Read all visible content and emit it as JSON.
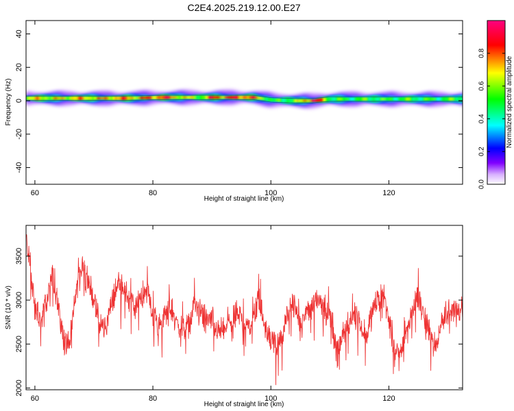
{
  "title": "C2E4.2025.219.12.00.E27",
  "chart_data": [
    {
      "type": "heatmap",
      "xlabel": "Height of straight line (km)",
      "ylabel": "Frequency (Hz)",
      "xlim": [
        58.5,
        132.5
      ],
      "ylim": [
        -50,
        48
      ],
      "xticks": [
        60,
        80,
        100,
        120
      ],
      "yticks": [
        -40,
        -20,
        0,
        20,
        40
      ],
      "colorbar": {
        "label": "Normalized spectral amplitude",
        "range": [
          0,
          1
        ],
        "ticks": [
          "0.0",
          "0.2",
          "0.4",
          "0.6",
          "0.8"
        ],
        "colormap": "rainbow",
        "colors": [
          "#ffffff",
          "#8000ff",
          "#0000ff",
          "#00ffff",
          "#00ff00",
          "#ffff00",
          "#ff0000",
          "#ff0080"
        ]
      },
      "ridge": {
        "x": [
          58.5,
          66,
          75,
          82,
          88,
          90,
          97,
          100,
          104,
          107,
          110,
          120,
          132.5
        ],
        "center_hz": [
          1.5,
          1.5,
          1.5,
          2,
          2,
          2,
          2,
          0.5,
          0,
          0,
          1,
          1,
          1
        ],
        "amplitude": [
          0.65,
          0.7,
          0.75,
          0.82,
          0.55,
          0.85,
          0.8,
          0.45,
          0.55,
          0.95,
          0.5,
          0.5,
          0.5
        ]
      }
    },
    {
      "type": "line",
      "xlabel": "Height of straight line (km)",
      "ylabel": "SNR (10 * v/v)",
      "xlim": [
        58.5,
        132.5
      ],
      "ylim": [
        1980,
        3850
      ],
      "xticks": [
        60,
        80,
        100,
        120
      ],
      "yticks": [
        2000,
        2500,
        3000,
        3500
      ],
      "series": [
        {
          "color": "#ee3333",
          "x": [
            58.5,
            59,
            59.5,
            60,
            61,
            62,
            63,
            64,
            65,
            66,
            67,
            68,
            69,
            70,
            71,
            72,
            73,
            74,
            75,
            76,
            77,
            78,
            79,
            80,
            81,
            82,
            83,
            84,
            85,
            86,
            87,
            88,
            89,
            90,
            91,
            92,
            93,
            94,
            95,
            96,
            97,
            98,
            99,
            100,
            101,
            102,
            103,
            104,
            105,
            106,
            107,
            108,
            109,
            110,
            111,
            112,
            113,
            114,
            115,
            116,
            117,
            118,
            119,
            120,
            121,
            122,
            123,
            124,
            125,
            126,
            127,
            128,
            129,
            130,
            131,
            132.5
          ],
          "y": [
            3700,
            3500,
            3200,
            2900,
            2750,
            3000,
            3300,
            2900,
            2500,
            2550,
            3100,
            3400,
            3250,
            3000,
            2700,
            2700,
            2950,
            3200,
            3150,
            3000,
            2900,
            3050,
            3100,
            2850,
            2700,
            2800,
            2900,
            2750,
            2650,
            2700,
            2950,
            2850,
            2750,
            2800,
            2650,
            2650,
            2750,
            2850,
            2800,
            2700,
            2800,
            3050,
            2700,
            2550,
            2450,
            2600,
            2900,
            2950,
            2650,
            2850,
            2950,
            3050,
            2900,
            2850,
            2450,
            2550,
            2700,
            2850,
            2750,
            2600,
            2800,
            3000,
            3100,
            2750,
            2400,
            2400,
            2650,
            2900,
            3050,
            2800,
            2600,
            2450,
            2750,
            2850,
            2900,
            2900
          ]
        }
      ]
    }
  ]
}
